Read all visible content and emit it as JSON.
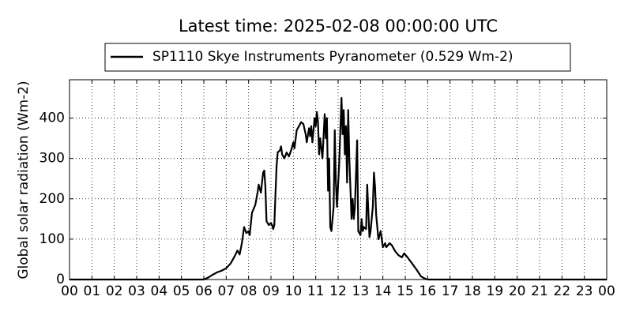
{
  "chart_data": {
    "type": "line",
    "title": "Latest time: 2025-02-08 00:00:00 UTC",
    "y_label": "Global solar radiation (Wm-2)",
    "x": [
      0,
      6.0,
      6.2,
      6.4,
      6.6,
      6.8,
      7.0,
      7.2,
      7.4,
      7.5,
      7.6,
      7.7,
      7.8,
      7.9,
      8.0,
      8.05,
      8.15,
      8.3,
      8.4,
      8.45,
      8.55,
      8.65,
      8.7,
      8.75,
      8.8,
      8.9,
      9.0,
      9.05,
      9.1,
      9.15,
      9.2,
      9.25,
      9.3,
      9.4,
      9.45,
      9.5,
      9.6,
      9.7,
      9.8,
      9.9,
      10.0,
      10.05,
      10.15,
      10.25,
      10.35,
      10.45,
      10.55,
      10.6,
      10.7,
      10.75,
      10.8,
      10.85,
      10.95,
      11.0,
      11.05,
      11.1,
      11.15,
      11.2,
      11.3,
      11.4,
      11.45,
      11.5,
      11.55,
      11.6,
      11.65,
      11.7,
      11.8,
      11.85,
      11.9,
      11.95,
      12.05,
      12.15,
      12.2,
      12.25,
      12.3,
      12.35,
      12.4,
      12.45,
      12.5,
      12.6,
      12.65,
      12.7,
      12.75,
      12.85,
      12.9,
      13.0,
      13.05,
      13.1,
      13.15,
      13.25,
      13.3,
      13.4,
      13.45,
      13.55,
      13.6,
      13.65,
      13.7,
      13.8,
      13.9,
      14.0,
      14.1,
      14.15,
      14.3,
      14.4,
      14.55,
      14.7,
      14.85,
      14.95,
      15.1,
      15.3,
      15.5,
      15.7,
      15.85,
      16.0,
      24
    ],
    "series": [
      {
        "name": "SP1110 Skye Instruments Pyranometer (0.529 Wm-2)",
        "color": "#000000",
        "values": [
          0,
          0,
          5,
          12,
          18,
          22,
          28,
          40,
          60,
          72,
          62,
          90,
          130,
          115,
          120,
          110,
          165,
          185,
          215,
          235,
          215,
          265,
          270,
          230,
          145,
          135,
          140,
          135,
          125,
          135,
          210,
          280,
          315,
          320,
          330,
          310,
          300,
          315,
          305,
          320,
          340,
          325,
          370,
          380,
          390,
          385,
          360,
          340,
          375,
          355,
          380,
          340,
          400,
          380,
          415,
          390,
          310,
          350,
          300,
          410,
          350,
          400,
          220,
          300,
          130,
          120,
          180,
          370,
          240,
          180,
          290,
          450,
          360,
          420,
          310,
          380,
          240,
          420,
          300,
          150,
          200,
          150,
          180,
          345,
          120,
          110,
          150,
          120,
          130,
          125,
          235,
          105,
          120,
          180,
          265,
          230,
          160,
          100,
          120,
          80,
          90,
          80,
          90,
          85,
          70,
          60,
          55,
          65,
          55,
          40,
          25,
          8,
          3,
          0,
          0
        ]
      }
    ],
    "xlim": [
      0,
      24
    ],
    "xticks": [
      {
        "value": 0,
        "label": "00"
      },
      {
        "value": 1,
        "label": "01"
      },
      {
        "value": 2,
        "label": "02"
      },
      {
        "value": 3,
        "label": "03"
      },
      {
        "value": 4,
        "label": "04"
      },
      {
        "value": 5,
        "label": "05"
      },
      {
        "value": 6,
        "label": "06"
      },
      {
        "value": 7,
        "label": "07"
      },
      {
        "value": 8,
        "label": "08"
      },
      {
        "value": 9,
        "label": "09"
      },
      10,
      11,
      12,
      13,
      14,
      15,
      16,
      17,
      18,
      19,
      20,
      21,
      22,
      23,
      {
        "value": 24,
        "label": "00"
      }
    ],
    "ylim": [
      0,
      495
    ],
    "yticks": [
      0,
      100,
      200,
      300,
      400
    ],
    "grid": true,
    "legend": "top"
  }
}
